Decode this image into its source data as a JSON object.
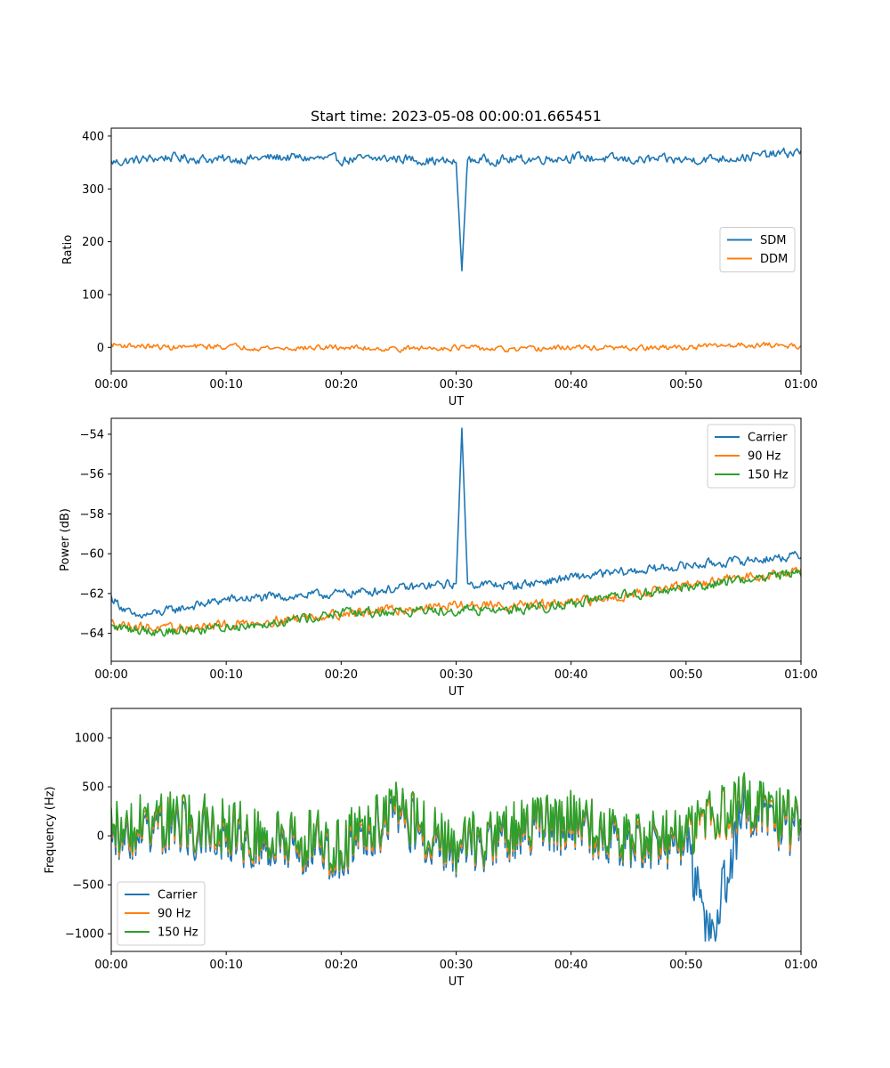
{
  "chart_data": [
    {
      "type": "line",
      "title": "Start time: 2023-05-08 00:00:01.665451",
      "xlabel": "UT",
      "ylabel": "Ratio",
      "xlim": [
        "00:00",
        "01:00"
      ],
      "ylim": [
        -45,
        415
      ],
      "xticks": [
        "00:00",
        "00:10",
        "00:20",
        "00:30",
        "00:40",
        "00:50",
        "01:00"
      ],
      "yticks": [
        0,
        100,
        200,
        300,
        400
      ],
      "ytick_labels": [
        "0",
        "100",
        "200",
        "300",
        "400"
      ],
      "legend": "center-right",
      "grid": false,
      "series": [
        {
          "name": "SDM",
          "color": "#1f77b4",
          "x": [
            "00:00",
            "00:05",
            "00:10",
            "00:15",
            "00:20",
            "00:25",
            "00:30",
            "00:30.5",
            "00:31",
            "00:35",
            "00:40",
            "00:45",
            "00:50",
            "00:55",
            "01:00"
          ],
          "values": [
            350,
            360,
            355,
            360,
            355,
            358,
            350,
            145,
            355,
            355,
            360,
            355,
            355,
            360,
            370
          ]
        },
        {
          "name": "DDM",
          "color": "#ff7f0e",
          "x": [
            "00:00",
            "00:05",
            "00:10",
            "00:15",
            "00:20",
            "00:25",
            "00:30",
            "00:35",
            "00:40",
            "00:45",
            "00:50",
            "00:55",
            "01:00"
          ],
          "values": [
            5,
            0,
            2,
            -2,
            0,
            -3,
            0,
            -5,
            0,
            -2,
            0,
            5,
            3
          ]
        }
      ]
    },
    {
      "type": "line",
      "xlabel": "UT",
      "ylabel": "Power (dB)",
      "xlim": [
        "00:00",
        "01:00"
      ],
      "ylim": [
        -65.4,
        -53.2
      ],
      "xticks": [
        "00:00",
        "00:10",
        "00:20",
        "00:30",
        "00:40",
        "00:50",
        "01:00"
      ],
      "yticks": [
        -64,
        -62,
        -60,
        -58,
        -56,
        -54
      ],
      "ytick_labels": [
        "−64",
        "−62",
        "−60",
        "−58",
        "−56",
        "−54"
      ],
      "legend": "top-right",
      "grid": false,
      "series": [
        {
          "name": "Carrier",
          "color": "#1f77b4",
          "x": [
            "00:00",
            "00:02",
            "00:10",
            "00:20",
            "00:30",
            "00:30.5",
            "00:31",
            "00:35",
            "00:40",
            "00:50",
            "01:00"
          ],
          "values": [
            -62.2,
            -63.2,
            -62.3,
            -62.0,
            -61.5,
            -53.7,
            -61.5,
            -61.6,
            -61.2,
            -60.6,
            -60.1
          ]
        },
        {
          "name": "90 Hz",
          "color": "#ff7f0e",
          "x": [
            "00:00",
            "00:05",
            "00:10",
            "00:20",
            "00:30",
            "00:35",
            "00:40",
            "00:50",
            "01:00"
          ],
          "values": [
            -63.5,
            -63.8,
            -63.6,
            -63.0,
            -62.6,
            -62.6,
            -62.5,
            -61.6,
            -60.8
          ]
        },
        {
          "name": "150 Hz",
          "color": "#2ca02c",
          "x": [
            "00:00",
            "00:05",
            "00:10",
            "00:20",
            "00:30",
            "00:35",
            "00:40",
            "00:50",
            "01:00"
          ],
          "values": [
            -63.7,
            -63.9,
            -63.7,
            -63.0,
            -62.8,
            -62.8,
            -62.5,
            -61.7,
            -60.9
          ]
        }
      ]
    },
    {
      "type": "line",
      "xlabel": "UT",
      "ylabel": "Frequency (Hz)",
      "xlim": [
        "00:00",
        "01:00"
      ],
      "ylim": [
        -1180,
        1300
      ],
      "xticks": [
        "00:00",
        "00:10",
        "00:20",
        "00:30",
        "00:40",
        "00:50",
        "01:00"
      ],
      "yticks": [
        -1000,
        -500,
        0,
        500,
        1000
      ],
      "ytick_labels": [
        "−1000",
        "−500",
        "0",
        "500",
        "1000"
      ],
      "legend": "bottom-left",
      "grid": false,
      "series": [
        {
          "name": "Carrier",
          "color": "#1f77b4",
          "x": [
            "00:00",
            "00:05",
            "00:10",
            "00:15",
            "00:20",
            "00:25",
            "00:30",
            "00:35",
            "00:40",
            "00:45",
            "00:50",
            "00:52",
            "00:55",
            "01:00"
          ],
          "values": [
            0,
            100,
            0,
            -100,
            -150,
            200,
            -200,
            0,
            100,
            -100,
            0,
            -1070,
            300,
            50
          ]
        },
        {
          "name": "90 Hz",
          "color": "#ff7f0e",
          "x": [
            "00:00",
            "00:05",
            "00:10",
            "00:15",
            "00:20",
            "00:25",
            "00:30",
            "00:35",
            "00:40",
            "00:45",
            "00:50",
            "00:55",
            "01:00"
          ],
          "values": [
            50,
            150,
            50,
            -50,
            -100,
            250,
            -150,
            50,
            150,
            -50,
            50,
            350,
            100
          ]
        },
        {
          "name": "150 Hz",
          "color": "#2ca02c",
          "x": [
            "00:00",
            "00:05",
            "00:10",
            "00:15",
            "00:20",
            "00:25",
            "00:30",
            "00:35",
            "00:40",
            "00:45",
            "00:50",
            "00:55",
            "01:00"
          ],
          "values": [
            80,
            180,
            80,
            -20,
            -70,
            280,
            -120,
            80,
            180,
            -20,
            80,
            380,
            130
          ]
        }
      ]
    }
  ]
}
